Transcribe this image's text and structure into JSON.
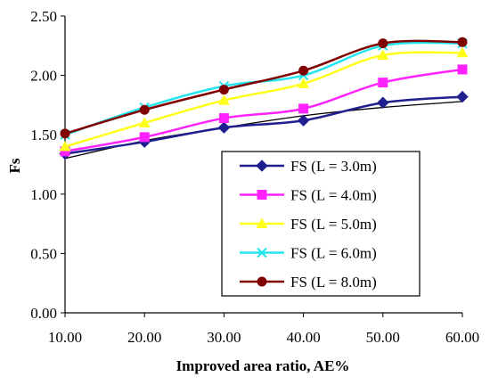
{
  "chart_data": {
    "type": "line",
    "xlabel": "Improved area ratio, AE%",
    "ylabel": "Fs",
    "x": [
      10,
      20,
      30,
      40,
      50,
      60
    ],
    "x_tick_labels": [
      "10.00",
      "20.00",
      "30.00",
      "40.00",
      "50.00",
      "60.00"
    ],
    "y_tick_labels": [
      "0.00",
      "0.50",
      "1.00",
      "1.50",
      "2.00",
      "2.50"
    ],
    "xlim": [
      10,
      60
    ],
    "ylim": [
      0,
      2.5
    ],
    "y_ticks": [
      0,
      0.5,
      1.0,
      1.5,
      2.0,
      2.5
    ],
    "grid": "none",
    "legend_position": "lower-right",
    "series": [
      {
        "name": "FS (L = 3.0m)",
        "color": "#1f1f8f",
        "marker": "diamond",
        "values": [
          1.34,
          1.44,
          1.56,
          1.62,
          1.77,
          1.82
        ]
      },
      {
        "name": "FS (L = 4.0m)",
        "color": "#ff22ff",
        "marker": "square",
        "values": [
          1.36,
          1.48,
          1.64,
          1.72,
          1.94,
          2.05
        ]
      },
      {
        "name": "FS (L = 5.0m)",
        "color": "#ffff1a",
        "marker": "triangle",
        "values": [
          1.4,
          1.6,
          1.79,
          1.93,
          2.17,
          2.19
        ]
      },
      {
        "name": "FS (L = 6.0m)",
        "color": "#22e5f0",
        "marker": "x",
        "values": [
          1.5,
          1.73,
          1.91,
          2.0,
          2.25,
          2.27
        ]
      },
      {
        "name": "FS (L = 8.0m)",
        "color": "#800000",
        "marker": "circle",
        "values": [
          1.51,
          1.71,
          1.88,
          2.04,
          2.27,
          2.28
        ]
      }
    ],
    "trendline": {
      "color": "#000000",
      "values": [
        1.3,
        1.45,
        1.56,
        1.66,
        1.73,
        1.78
      ]
    }
  }
}
